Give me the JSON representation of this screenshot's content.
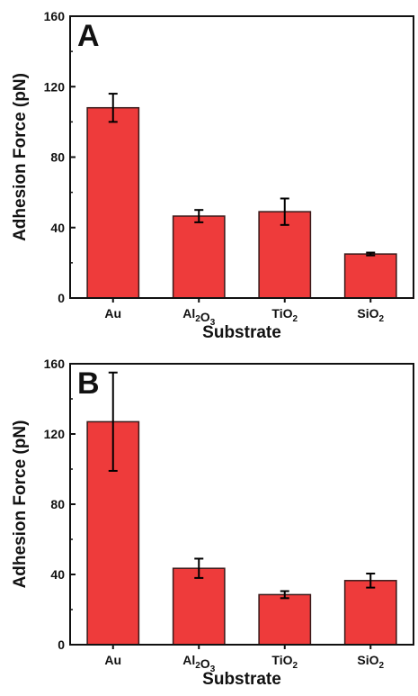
{
  "colors": {
    "bar": "#ee3b3b",
    "bar_edge": "#3a1a1a",
    "axis": "#111111"
  },
  "chart_data": [
    {
      "type": "bar",
      "panel_label": "A",
      "categories": [
        {
          "base": "Au",
          "parts": [
            [
              "Au",
              ""
            ]
          ]
        },
        {
          "base": "Al2O3",
          "parts": [
            [
              "Al",
              "2"
            ],
            [
              "O",
              "3"
            ]
          ]
        },
        {
          "base": "TiO2",
          "parts": [
            [
              "TiO",
              "2"
            ]
          ]
        },
        {
          "base": "SiO2",
          "parts": [
            [
              "SiO",
              "2"
            ]
          ]
        }
      ],
      "values": [
        108,
        46.5,
        49,
        25
      ],
      "errors": [
        8,
        3.5,
        7.5,
        0.8
      ],
      "xlabel": "Substrate",
      "ylabel": "Adhesion Force (pN)",
      "ylim": [
        0,
        160
      ],
      "yticks": [
        0,
        40,
        80,
        120,
        160
      ]
    },
    {
      "type": "bar",
      "panel_label": "B",
      "categories": [
        {
          "base": "Au",
          "parts": [
            [
              "Au",
              ""
            ]
          ]
        },
        {
          "base": "Al2O3",
          "parts": [
            [
              "Al",
              "2"
            ],
            [
              "O",
              "3"
            ]
          ]
        },
        {
          "base": "TiO2",
          "parts": [
            [
              "TiO",
              "2"
            ]
          ]
        },
        {
          "base": "SiO2",
          "parts": [
            [
              "SiO",
              "2"
            ]
          ]
        }
      ],
      "values": [
        127,
        43.5,
        28.5,
        36.5
      ],
      "errors": [
        28,
        5.5,
        2,
        4
      ],
      "xlabel": "Substrate",
      "ylabel": "Adhesion Force (pN)",
      "ylim": [
        0,
        160
      ],
      "yticks": [
        0,
        40,
        80,
        120,
        160
      ]
    }
  ]
}
